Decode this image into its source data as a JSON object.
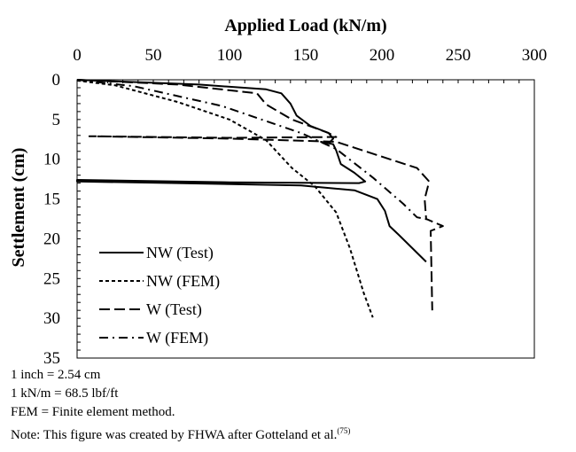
{
  "chart_data": {
    "type": "line",
    "title": "Applied Load (kN/m)",
    "xlabel": "Applied Load (kN/m)",
    "ylabel": "Settlement (cm)",
    "xlim": [
      0,
      300
    ],
    "ylim": [
      0,
      35
    ],
    "xticks": [
      0,
      50,
      100,
      150,
      200,
      250,
      300
    ],
    "yticks": [
      0,
      5,
      10,
      15,
      20,
      25,
      30,
      35
    ],
    "y_inverted": true,
    "x_axis_position": "top",
    "legend_position": "bottom-left",
    "series": [
      {
        "name": "NW (Test)",
        "style": "solid",
        "points": [
          [
            0,
            0
          ],
          [
            25,
            0.2
          ],
          [
            80,
            0.6
          ],
          [
            124,
            1.2
          ],
          [
            134,
            1.7
          ],
          [
            140,
            3.0
          ],
          [
            144,
            4.5
          ],
          [
            153,
            5.8
          ],
          [
            165,
            6.7
          ],
          [
            168,
            7.4
          ],
          [
            165,
            8.0
          ],
          [
            160,
            7.8
          ],
          [
            168,
            8.1
          ],
          [
            170,
            8.9
          ],
          [
            173,
            10.6
          ],
          [
            182,
            11.7
          ],
          [
            189,
            12.8
          ],
          [
            185,
            13.0
          ],
          [
            100,
            12.9
          ],
          [
            0,
            12.6
          ],
          [
            0,
            12.8
          ],
          [
            66,
            13.0
          ],
          [
            147,
            13.3
          ],
          [
            182,
            13.9
          ],
          [
            197,
            15.0
          ],
          [
            202,
            16.5
          ],
          [
            205,
            18.4
          ],
          [
            211,
            19.5
          ],
          [
            229,
            22.9
          ]
        ]
      },
      {
        "name": "NW (FEM)",
        "style": "dotted",
        "points": [
          [
            0,
            0.1
          ],
          [
            25,
            0.7
          ],
          [
            66,
            2.8
          ],
          [
            100,
            5.0
          ],
          [
            124,
            7.6
          ],
          [
            141,
            11.1
          ],
          [
            156,
            13.4
          ],
          [
            170,
            16.7
          ],
          [
            179,
            21.2
          ],
          [
            188,
            26.8
          ],
          [
            194,
            29.9
          ]
        ]
      },
      {
        "name": "W (Test)",
        "style": "dashed",
        "points": [
          [
            0,
            0
          ],
          [
            66,
            0.6
          ],
          [
            118,
            1.7
          ],
          [
            124,
            3.1
          ],
          [
            141,
            5.0
          ],
          [
            165,
            6.7
          ],
          [
            170,
            7.2
          ],
          [
            100,
            7.3
          ],
          [
            8,
            7.1
          ],
          [
            100,
            7.4
          ],
          [
            170,
            7.8
          ],
          [
            223,
            11.1
          ],
          [
            231,
            12.8
          ],
          [
            228,
            15.0
          ],
          [
            229,
            17.5
          ],
          [
            240,
            18.4
          ],
          [
            232,
            19.0
          ],
          [
            233,
            29.0
          ]
        ]
      },
      {
        "name": "W (FEM)",
        "style": "dashdot",
        "points": [
          [
            0,
            0
          ],
          [
            37,
            0.8
          ],
          [
            95,
            3.3
          ],
          [
            147,
            6.7
          ],
          [
            170,
            8.7
          ],
          [
            194,
            12.3
          ],
          [
            214,
            15.6
          ],
          [
            223,
            17.3
          ],
          [
            231,
            17.6
          ]
        ]
      }
    ]
  },
  "notes": [
    "1 inch = 2.54 cm",
    "1 kN/m = 68.5 lbf/ft",
    "FEM = Finite element method.",
    "Note: This figure was created by FHWA after Gotteland et al."
  ],
  "note_ref": "(75)"
}
